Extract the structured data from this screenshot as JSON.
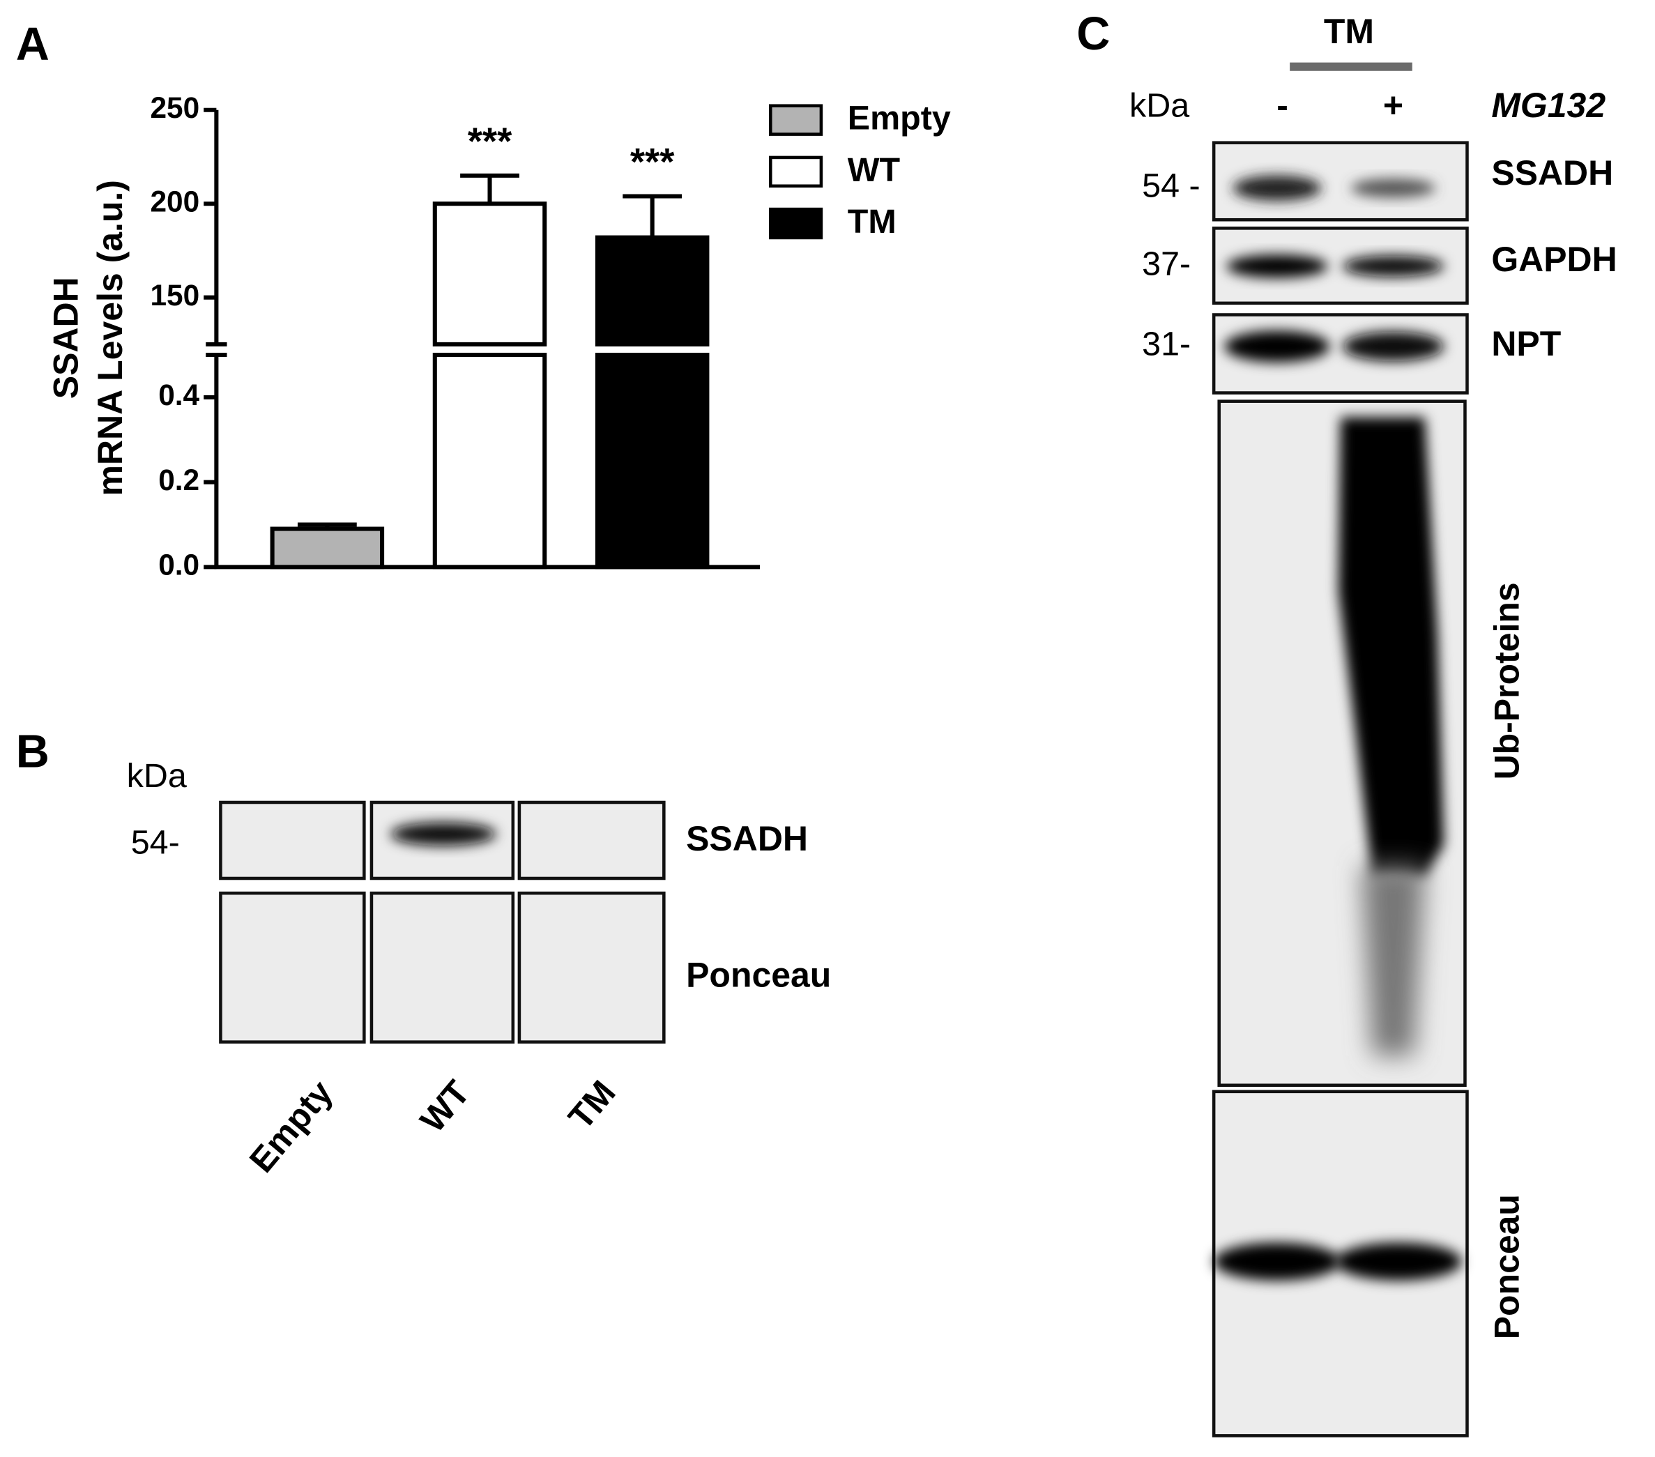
{
  "chart_data": {
    "type": "bar",
    "panel_label": "A",
    "y_label": [
      "SSADH",
      "mRNA Levels (a.u.)"
    ],
    "categories": [
      null
    ],
    "series": [
      {
        "name": "Empty",
        "color": "#b3b3b3",
        "values": [
          0.09
        ],
        "errors": [
          0.01
        ]
      },
      {
        "name": "WT",
        "color": "#ffffff",
        "values": [
          200
        ],
        "errors": [
          15
        ],
        "annotation": "***"
      },
      {
        "name": "TM",
        "color": "#000000",
        "values": [
          182
        ],
        "errors": [
          22
        ],
        "annotation": "***"
      }
    ],
    "axis_segments": [
      {
        "ylim": [
          0,
          0.5
        ],
        "yticks": [
          {
            "value": 0,
            "label": "0.0"
          },
          0.2,
          0.4
        ]
      },
      {
        "ylim": [
          125,
          250
        ],
        "yticks": [
          150,
          200,
          250
        ]
      }
    ],
    "legend": "upper right"
  },
  "blot_b": {
    "panel_label": "B",
    "unit": "kDa",
    "markers": [
      "54-"
    ],
    "rows": [
      "SSADH",
      "Ponceau"
    ],
    "lanes": [
      "Empty",
      "WT",
      "TM"
    ]
  },
  "blot_c": {
    "panel_label": "C",
    "group": "TM",
    "unit": "kDa",
    "treatment": "MG132",
    "lanes": [
      "-",
      "+"
    ],
    "markers": [
      "54 -",
      "37-",
      "31-"
    ],
    "rows": [
      "SSADH",
      "GAPDH",
      "NPT",
      "Ub-Proteins",
      "Ponceau"
    ]
  }
}
